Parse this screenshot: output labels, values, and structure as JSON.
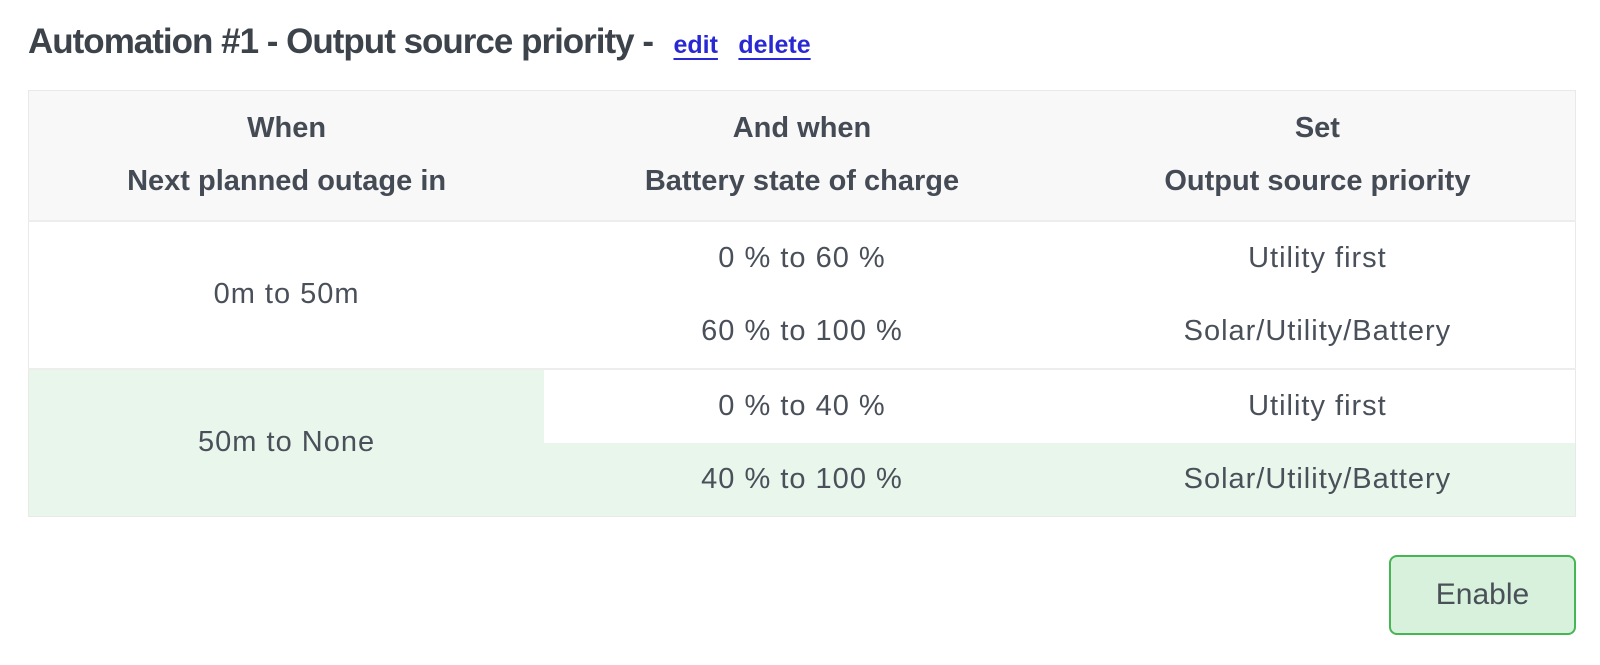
{
  "header": {
    "title": "Automation #1 - Output source priority -",
    "links": {
      "edit": "edit",
      "delete": "delete"
    }
  },
  "table": {
    "columns": [
      {
        "group_label": "When",
        "field_label": "Next planned outage in"
      },
      {
        "group_label": "And when",
        "field_label": "Battery state of charge"
      },
      {
        "group_label": "Set",
        "field_label": "Output source priority"
      }
    ],
    "groups": [
      {
        "when": "0m to 50m",
        "highlighted": false,
        "rows": [
          {
            "battery_soc": "0 % to 60 %",
            "output_priority": "Utility first"
          },
          {
            "battery_soc": "60 % to 100 %",
            "output_priority": "Solar/Utility/Battery"
          }
        ]
      },
      {
        "when": "50m to None",
        "highlighted": true,
        "rows": [
          {
            "battery_soc": "0 % to 40 %",
            "output_priority": "Utility first",
            "row_highlighted": false
          },
          {
            "battery_soc": "40 % to 100 %",
            "output_priority": "Solar/Utility/Battery",
            "row_highlighted": true
          }
        ]
      }
    ]
  },
  "footer": {
    "enable_label": "Enable"
  },
  "colors": {
    "title_text": "#3d434b",
    "link_blue": "#2929d4",
    "table_text": "#4a505a",
    "header_bg": "#f8f8f9",
    "highlight_green_bg": "#e8f6eb",
    "button_bg": "#d7f1dc",
    "button_border": "#46b554",
    "table_border": "#e9e9e9"
  }
}
